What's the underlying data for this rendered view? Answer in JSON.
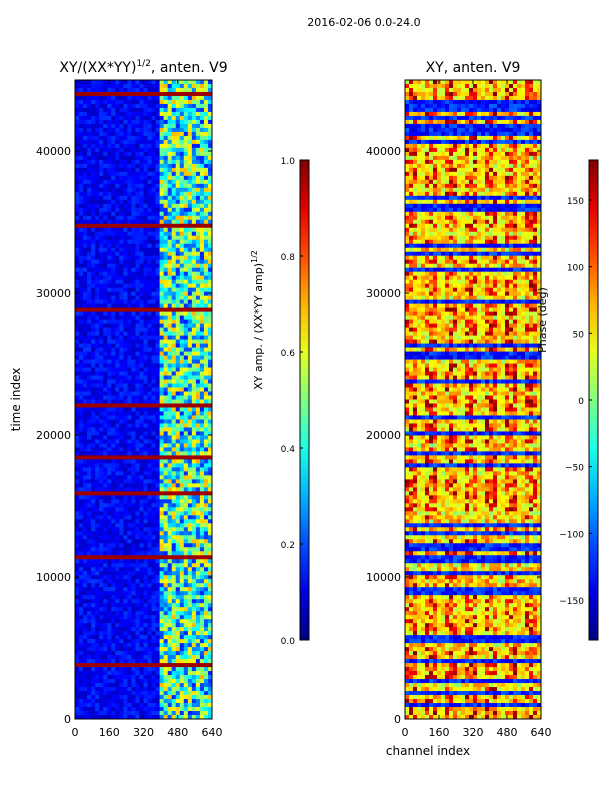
{
  "figure": {
    "suptitle": "2016-02-06 0.0-24.0"
  },
  "chart_data": [
    {
      "type": "heatmap",
      "title": "XY/(XX*YY)^{1/2}, anten. V9",
      "title_main": "XY/(XX*YY)",
      "title_sup": "1/2",
      "title_tail": ", anten. V9",
      "xlabel": "",
      "ylabel": "time index",
      "xlim": [
        0,
        640
      ],
      "ylim": [
        0,
        45000
      ],
      "x_ticks": [
        0,
        160,
        320,
        480,
        640
      ],
      "y_ticks": [
        0,
        10000,
        20000,
        30000,
        40000
      ],
      "colormap": "jet",
      "colorbar": {
        "label": "XY amp. / (XX*YY amp)^{1/2}",
        "label_main": "XY amp. / (XX*YY amp)",
        "label_sup": "1/2",
        "vmin": 0.0,
        "vmax": 1.0,
        "ticks": [
          "0.0",
          "0.2",
          "0.4",
          "0.6",
          "0.8",
          "1.0"
        ],
        "tick_values": [
          0.0,
          0.2,
          0.4,
          0.6,
          0.8,
          1.0
        ]
      },
      "variant": "amplitude"
    },
    {
      "type": "heatmap",
      "title": "XY, anten. V9",
      "xlabel": "channel index",
      "ylabel": "",
      "xlim": [
        0,
        640
      ],
      "ylim": [
        0,
        45000
      ],
      "x_ticks": [
        0,
        160,
        320,
        480,
        640
      ],
      "y_ticks": [
        0,
        10000,
        20000,
        30000,
        40000
      ],
      "colormap": "jet",
      "colorbar": {
        "label": "Phase (deg)",
        "vmin": -180,
        "vmax": 180,
        "ticks": [
          "−150",
          "−100",
          "−50",
          "0",
          "50",
          "100",
          "150"
        ],
        "tick_values": [
          -150,
          -100,
          -50,
          0,
          50,
          100,
          150
        ]
      },
      "variant": "phase"
    }
  ]
}
